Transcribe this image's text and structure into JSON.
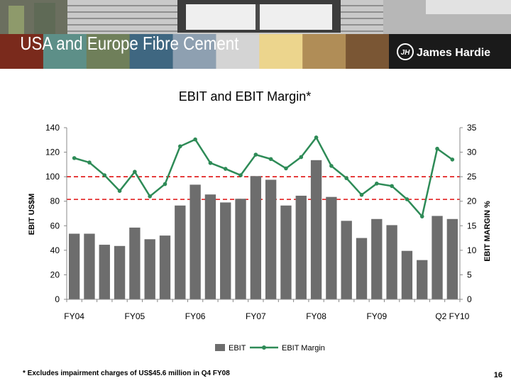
{
  "slide": {
    "title": "USA and Europe Fibre Cement",
    "brand": "James Hardie",
    "logo_text": "JH",
    "footnote": "* Excludes impairment charges of US$45.6 million in Q4 FY08",
    "page_number": "16",
    "band_colors": [
      "#7a2a1c",
      "#5d8f88",
      "#6f7f5a",
      "#3f6781",
      "#8ea0b1",
      "#d4d4d4",
      "#ecd58d",
      "#b08d57",
      "#7a5634",
      "#333333"
    ]
  },
  "chart_data": {
    "type": "bar",
    "title": "EBIT and EBIT Margin*",
    "ylabel": "EBIT US$M",
    "y2label": "EBIT MARGIN %",
    "ylim": [
      0,
      140
    ],
    "y2lim": [
      0,
      35
    ],
    "yticks": [
      0,
      20,
      40,
      60,
      80,
      100,
      120,
      140
    ],
    "y2ticks": [
      0,
      5,
      10,
      15,
      20,
      25,
      30,
      35
    ],
    "xtick_labels": [
      {
        "label": "FY04",
        "index": 0
      },
      {
        "label": "FY05",
        "index": 4
      },
      {
        "label": "FY06",
        "index": 8
      },
      {
        "label": "FY07",
        "index": 12
      },
      {
        "label": "FY08",
        "index": 16
      },
      {
        "label": "FY09",
        "index": 20
      },
      {
        "label": "Q2 FY10",
        "index": 25
      }
    ],
    "reference_lines_y": [
      81.5,
      100
    ],
    "series": [
      {
        "name": "EBIT",
        "type": "bar",
        "color": "#6d6d6d",
        "values": [
          53.5,
          53.5,
          44.5,
          43.5,
          58.5,
          49,
          52,
          76.5,
          93.5,
          85.5,
          79,
          82,
          100.5,
          97.5,
          76.5,
          84.5,
          113.5,
          83.5,
          64,
          50,
          65.5,
          60.5,
          39.5,
          32,
          68,
          65.5
        ]
      },
      {
        "name": "EBIT Margin",
        "type": "line",
        "axis": "right",
        "color": "#2e8b57",
        "values": [
          28.8,
          27.9,
          25.3,
          22.1,
          26,
          21,
          23.5,
          31.2,
          32.6,
          27.8,
          26.6,
          25.3,
          29.5,
          28.6,
          26.7,
          29,
          33,
          27.2,
          24.7,
          21.3,
          23.6,
          23.1,
          20.4,
          16.9,
          30.7,
          28.5
        ]
      }
    ],
    "legend_position": "bottom"
  }
}
